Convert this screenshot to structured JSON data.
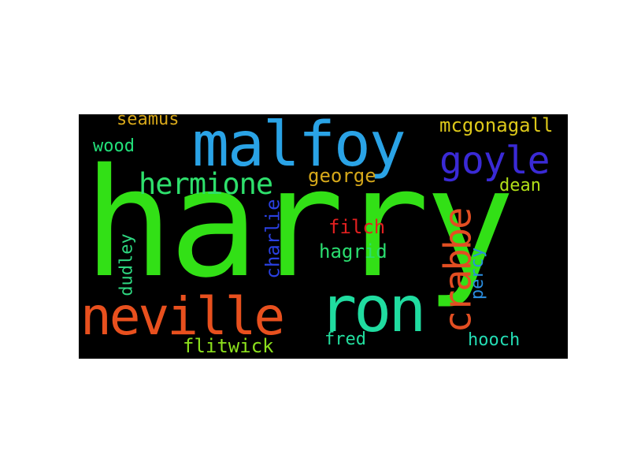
{
  "words": {
    "harry": {
      "text": "harry",
      "color": "#32e016"
    },
    "malfoy": {
      "text": "malfoy",
      "color": "#2aa3e6"
    },
    "neville": {
      "text": "neville",
      "color": "#e8501e"
    },
    "ron": {
      "text": "ron",
      "color": "#20dca0"
    },
    "goyle": {
      "text": "goyle",
      "color": "#3a2ad6"
    },
    "hermione": {
      "text": "hermione",
      "color": "#2ee06c"
    },
    "crabbe": {
      "text": "crabbe",
      "color": "#e24e22"
    },
    "mcgonagall": {
      "text": "mcgonagall",
      "color": "#dcc81a"
    },
    "seamus": {
      "text": "seamus",
      "color": "#d8a81a"
    },
    "wood": {
      "text": "wood",
      "color": "#22e07a"
    },
    "george": {
      "text": "george",
      "color": "#d6a81a"
    },
    "dean": {
      "text": "dean",
      "color": "#b0de18"
    },
    "filch": {
      "text": "filch",
      "color": "#e22020"
    },
    "hagrid": {
      "text": "hagrid",
      "color": "#2ade70"
    },
    "charlie": {
      "text": "charlie",
      "color": "#2a40e0"
    },
    "dudley": {
      "text": "dudley",
      "color": "#2ed680"
    },
    "percy": {
      "text": "percy",
      "color": "#2a8ee0"
    },
    "flitwick": {
      "text": "flitwick",
      "color": "#8ce01c"
    },
    "fred": {
      "text": "fred",
      "color": "#22de9e"
    },
    "hooch": {
      "text": "hooch",
      "color": "#24dcb4"
    }
  }
}
